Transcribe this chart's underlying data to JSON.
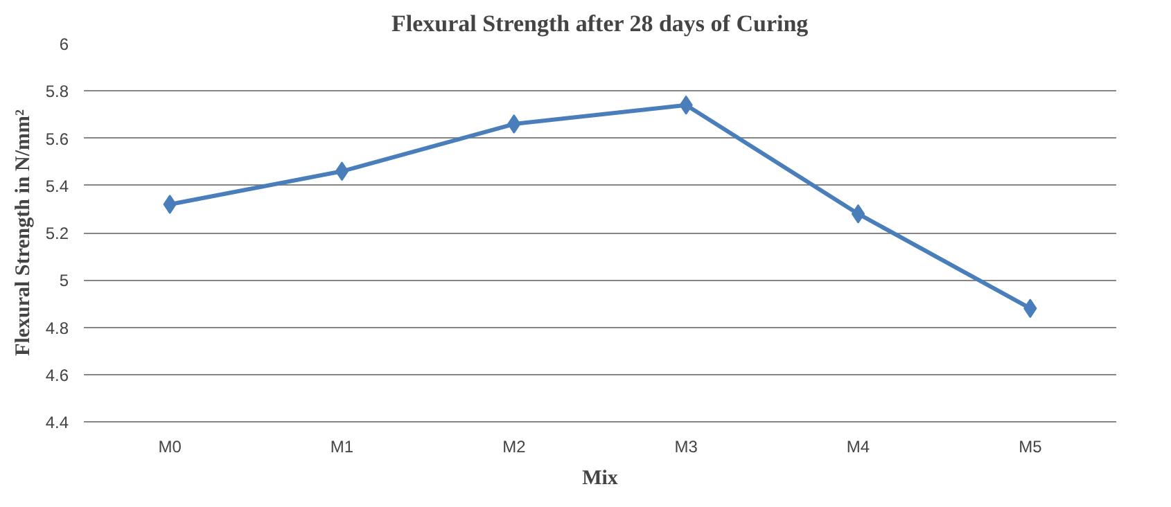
{
  "chart_data": {
    "type": "line",
    "title": "Flexural Strength after 28 days of Curing",
    "xlabel": "Mix",
    "ylabel": "Flexural Strength in N/mm²",
    "categories": [
      "M0",
      "M1",
      "M2",
      "M3",
      "M4",
      "M5"
    ],
    "series": [
      {
        "color": "#4a7ebb",
        "values": [
          5.32,
          5.46,
          5.66,
          5.74,
          5.28,
          4.88
        ]
      }
    ],
    "ylim": [
      4.4,
      6
    ],
    "yticks": [
      4.4,
      4.6,
      4.8,
      5,
      5.2,
      5.4,
      5.6,
      5.8,
      6
    ],
    "grid": "y",
    "marker": "diamond",
    "line_style": "solid"
  }
}
